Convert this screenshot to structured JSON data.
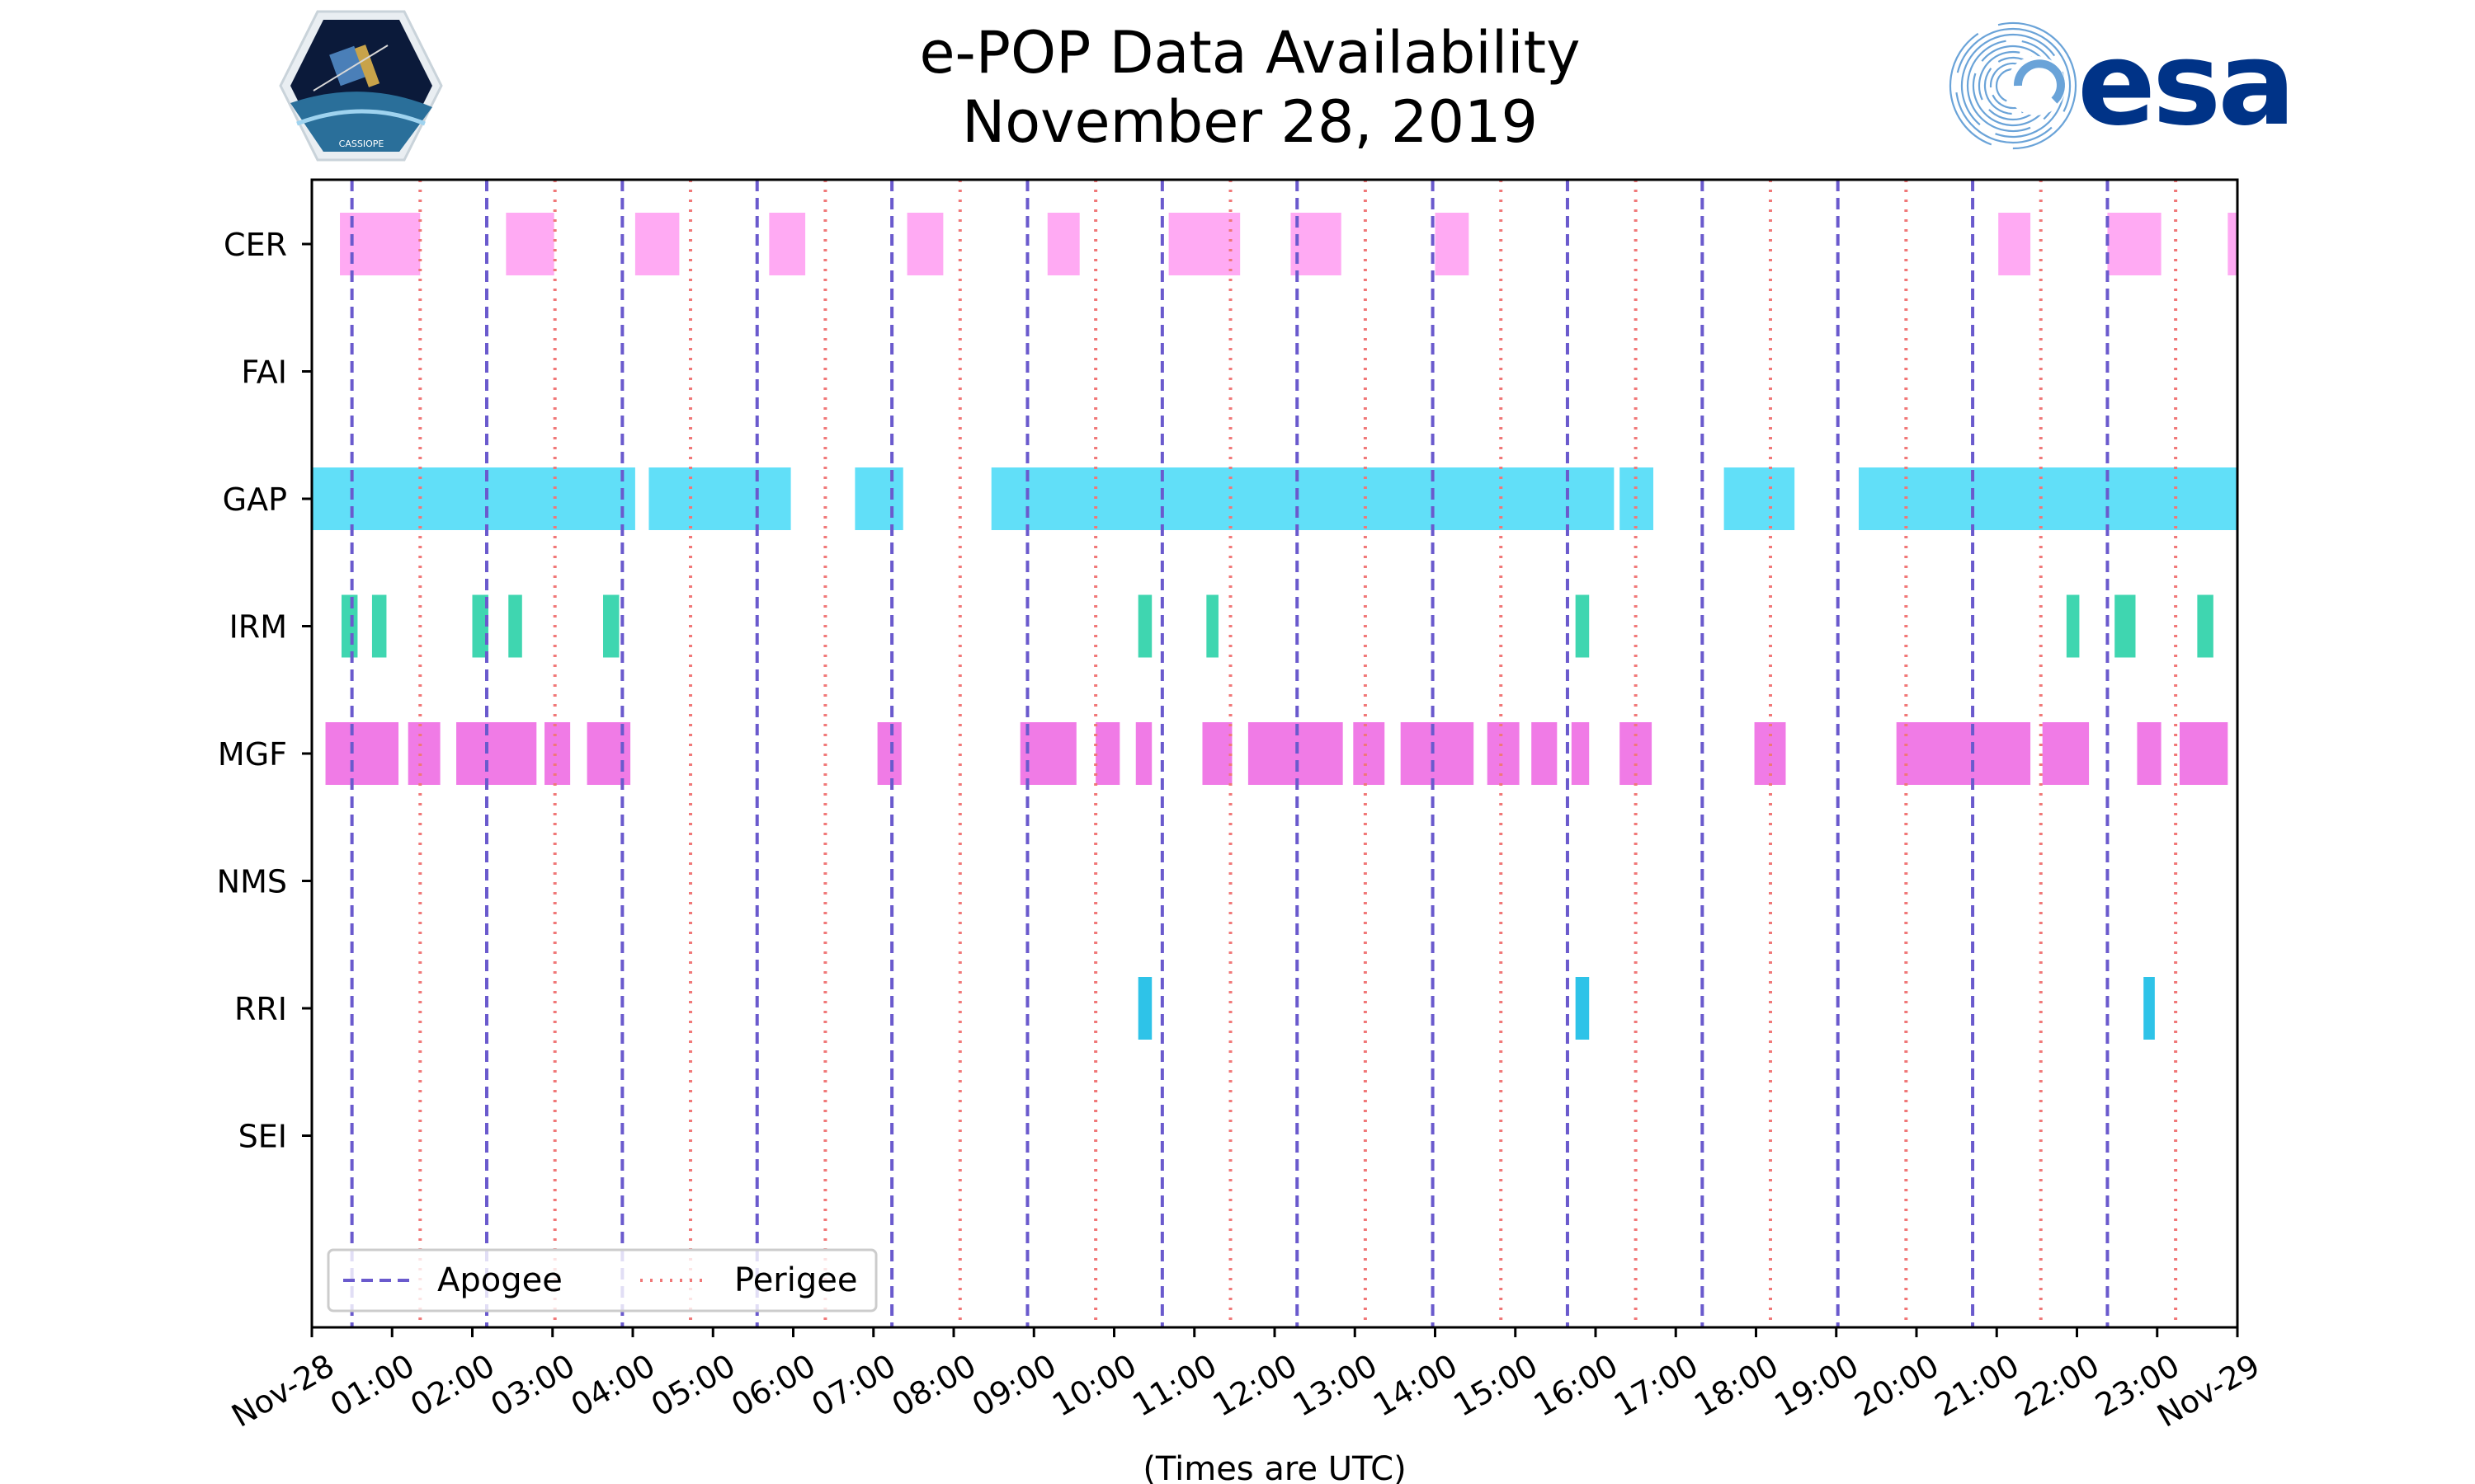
{
  "chart_data": {
    "type": "timeline",
    "title": "e-POP Data Availability",
    "subtitle": "November 28, 2019",
    "xlabel": "(Times are UTC)",
    "xlim_hours": [
      0,
      24
    ],
    "x_tick_labels": [
      "Nov-28",
      "01:00",
      "02:00",
      "03:00",
      "04:00",
      "05:00",
      "06:00",
      "07:00",
      "08:00",
      "09:00",
      "10:00",
      "11:00",
      "12:00",
      "13:00",
      "14:00",
      "15:00",
      "16:00",
      "17:00",
      "18:00",
      "19:00",
      "20:00",
      "21:00",
      "22:00",
      "23:00",
      "Nov-29"
    ],
    "instruments": [
      "CER",
      "FAI",
      "GAP",
      "IRM",
      "MGF",
      "NMS",
      "RRI",
      "SEI"
    ],
    "apogee_hours": [
      0.5,
      2.18,
      3.87,
      5.55,
      7.23,
      8.92,
      10.6,
      12.28,
      13.97,
      15.65,
      17.33,
      19.02,
      20.7,
      22.38
    ],
    "perigee_hours": [
      1.35,
      3.03,
      4.72,
      6.4,
      8.08,
      9.77,
      11.45,
      13.13,
      14.82,
      16.5,
      18.18,
      19.87,
      21.55,
      23.23
    ],
    "legend": {
      "apogee": "Apogee",
      "perigee": "Perigee",
      "location": "lower-left"
    },
    "colors": {
      "CER": "#ffaaf3",
      "GAP": "#61dff8",
      "IRM": "#3fd6b0",
      "MGF": "#f07be6",
      "RRI": "#2ec3e8",
      "apogee": "#6a5acd",
      "perigee": "#f07878"
    },
    "series": [
      {
        "name": "CER",
        "intervals": [
          [
            0.35,
            1.35
          ],
          [
            2.42,
            3.02
          ],
          [
            4.03,
            4.58
          ],
          [
            5.7,
            6.15
          ],
          [
            7.42,
            7.87
          ],
          [
            9.17,
            9.57
          ],
          [
            10.68,
            11.57
          ],
          [
            12.2,
            12.83
          ],
          [
            14.0,
            14.42
          ],
          [
            21.02,
            21.42
          ],
          [
            22.38,
            23.05
          ],
          [
            23.88,
            24.0
          ]
        ]
      },
      {
        "name": "FAI",
        "intervals": []
      },
      {
        "name": "GAP",
        "intervals": [
          [
            0.0,
            4.03
          ],
          [
            4.2,
            5.97
          ],
          [
            6.77,
            7.37
          ],
          [
            8.47,
            16.23
          ],
          [
            16.3,
            16.72
          ],
          [
            17.6,
            18.48
          ],
          [
            19.28,
            24.0
          ]
        ]
      },
      {
        "name": "IRM",
        "intervals": [
          [
            0.37,
            0.57
          ],
          [
            0.75,
            0.93
          ],
          [
            2.0,
            2.2
          ],
          [
            2.45,
            2.62
          ],
          [
            3.63,
            3.83
          ],
          [
            10.3,
            10.47
          ],
          [
            11.15,
            11.3
          ],
          [
            15.75,
            15.92
          ],
          [
            21.87,
            22.03
          ],
          [
            22.47,
            22.73
          ],
          [
            23.5,
            23.7
          ]
        ]
      },
      {
        "name": "MGF",
        "intervals": [
          [
            0.17,
            1.08
          ],
          [
            1.2,
            1.6
          ],
          [
            1.8,
            2.8
          ],
          [
            2.9,
            3.22
          ],
          [
            3.43,
            3.97
          ],
          [
            7.05,
            7.35
          ],
          [
            8.83,
            9.53
          ],
          [
            9.77,
            10.07
          ],
          [
            10.27,
            10.47
          ],
          [
            11.1,
            11.47
          ],
          [
            11.67,
            12.85
          ],
          [
            12.98,
            13.37
          ],
          [
            13.57,
            14.48
          ],
          [
            14.65,
            15.05
          ],
          [
            15.2,
            15.52
          ],
          [
            15.7,
            15.92
          ],
          [
            16.3,
            16.7
          ],
          [
            17.98,
            18.37
          ],
          [
            19.75,
            21.42
          ],
          [
            21.57,
            22.15
          ],
          [
            22.75,
            23.05
          ],
          [
            23.28,
            23.88
          ]
        ]
      },
      {
        "name": "NMS",
        "intervals": []
      },
      {
        "name": "RRI",
        "intervals": [
          [
            10.3,
            10.47
          ],
          [
            15.75,
            15.92
          ],
          [
            22.83,
            22.97
          ]
        ]
      },
      {
        "name": "SEI",
        "intervals": []
      }
    ]
  },
  "logos": {
    "left": {
      "name": "CASSIOPE",
      "caption": "CASSIOPE"
    },
    "right": {
      "name": "esa",
      "text": "esa"
    }
  }
}
